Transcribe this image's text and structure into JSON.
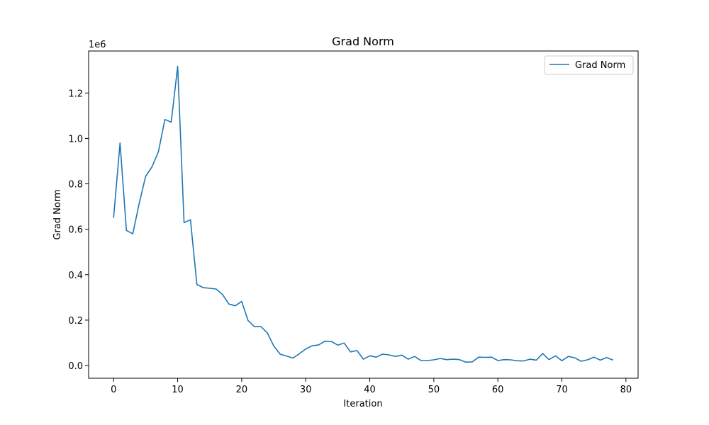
{
  "chart_data": {
    "type": "line",
    "title": "Grad Norm",
    "xlabel": "Iteration",
    "ylabel": "Grad Norm",
    "y_scale_label": "1e6",
    "xlim": [
      -3.9,
      81.9
    ],
    "ylim": [
      -0.056,
      1.385
    ],
    "x_ticks": [
      0,
      10,
      20,
      30,
      40,
      50,
      60,
      70,
      80
    ],
    "x_tick_labels": [
      "0",
      "10",
      "20",
      "30",
      "40",
      "50",
      "60",
      "70",
      "80"
    ],
    "y_ticks": [
      0.0,
      0.2,
      0.4,
      0.6,
      0.8,
      1.0,
      1.2
    ],
    "y_tick_labels": [
      "0.0",
      "0.2",
      "0.4",
      "0.6",
      "0.8",
      "1.0",
      "1.2"
    ],
    "grid": false,
    "legend": {
      "position": "top-right",
      "entries": [
        "Grad Norm"
      ]
    },
    "series": [
      {
        "name": "Grad Norm",
        "color": "#1f77b4",
        "x": [
          0,
          1,
          2,
          3,
          4,
          5,
          6,
          7,
          8,
          9,
          10,
          11,
          12,
          13,
          14,
          15,
          16,
          17,
          18,
          19,
          20,
          21,
          22,
          23,
          24,
          25,
          26,
          27,
          28,
          29,
          30,
          31,
          32,
          33,
          34,
          35,
          36,
          37,
          38,
          39,
          40,
          41,
          42,
          43,
          44,
          45,
          46,
          47,
          48,
          49,
          50,
          51,
          52,
          53,
          54,
          55,
          56,
          57,
          58,
          59,
          60,
          61,
          62,
          63,
          64,
          65,
          66,
          67,
          68,
          69,
          70,
          71,
          72,
          73,
          74,
          75,
          76,
          77,
          78
        ],
        "values": [
          0.65,
          0.98,
          0.595,
          0.58,
          0.715,
          0.833,
          0.875,
          0.942,
          1.083,
          1.072,
          1.318,
          0.629,
          0.642,
          0.357,
          0.343,
          0.34,
          0.337,
          0.313,
          0.271,
          0.263,
          0.282,
          0.198,
          0.171,
          0.171,
          0.144,
          0.087,
          0.05,
          0.042,
          0.033,
          0.052,
          0.073,
          0.087,
          0.091,
          0.107,
          0.106,
          0.09,
          0.099,
          0.06,
          0.066,
          0.028,
          0.043,
          0.037,
          0.05,
          0.047,
          0.04,
          0.046,
          0.028,
          0.04,
          0.022,
          0.022,
          0.025,
          0.031,
          0.026,
          0.028,
          0.026,
          0.015,
          0.016,
          0.037,
          0.036,
          0.037,
          0.022,
          0.026,
          0.025,
          0.021,
          0.02,
          0.028,
          0.024,
          0.053,
          0.026,
          0.043,
          0.021,
          0.04,
          0.034,
          0.019,
          0.025,
          0.037,
          0.024,
          0.035,
          0.024
        ]
      }
    ]
  }
}
